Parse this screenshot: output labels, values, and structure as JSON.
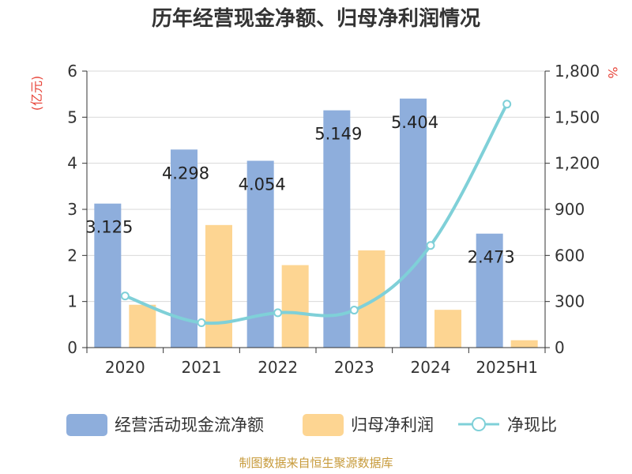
{
  "chart_data": {
    "type": "bar+line",
    "title": "历年经营现金净额、归母净利润情况",
    "left_axis_unit": "(亿元)",
    "right_axis_unit": "%",
    "categories": [
      "2020",
      "2021",
      "2022",
      "2023",
      "2024",
      "2025H1"
    ],
    "left_ylim": [
      0,
      6
    ],
    "left_ticks": [
      "0",
      "1",
      "2",
      "3",
      "4",
      "5",
      "6"
    ],
    "right_ylim": [
      0,
      1800
    ],
    "right_ticks": [
      "0",
      "300",
      "600",
      "900",
      "1,200",
      "1,500",
      "1,800"
    ],
    "grid": true,
    "legend_position": "bottom",
    "series": [
      {
        "name": "经营活动现金流净额",
        "type": "bar",
        "axis": "left",
        "color": "#8eaedc",
        "values": [
          3.125,
          4.298,
          4.054,
          5.149,
          5.404,
          2.473
        ],
        "labels": [
          "3.125",
          "4.298",
          "4.054",
          "5.149",
          "5.404",
          "2.473"
        ]
      },
      {
        "name": "归母净利润",
        "type": "bar",
        "axis": "left",
        "color": "#fdd592",
        "values": [
          0.93,
          2.66,
          1.79,
          2.11,
          0.82,
          0.16
        ]
      },
      {
        "name": "净现比",
        "type": "line",
        "axis": "right",
        "color": "#7fd0d8",
        "values": [
          336,
          162,
          227,
          244,
          665,
          1585
        ]
      }
    ]
  },
  "footer": {
    "source": "制图数据来自恒生聚源数据库"
  },
  "colors": {
    "unit_text": "#e8473c",
    "source_text": "#c79a3a",
    "axis": "#333333",
    "grid": "#d9d9d9"
  }
}
